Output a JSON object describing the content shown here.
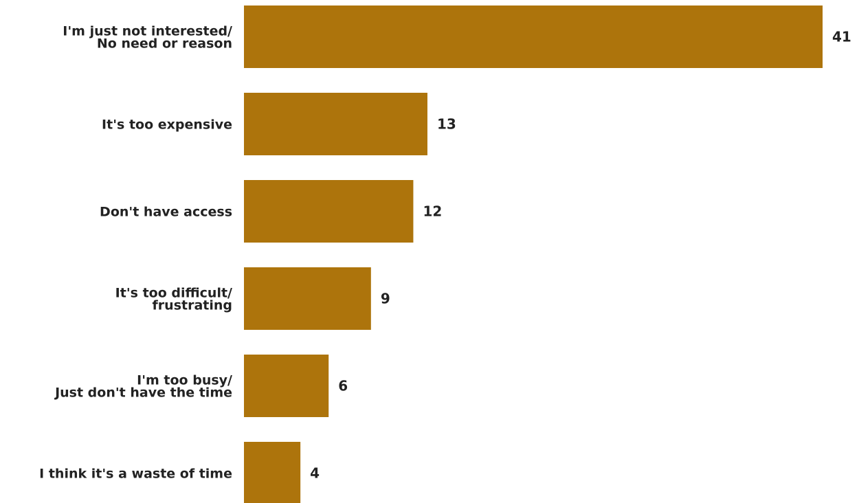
{
  "chart_data": {
    "type": "bar",
    "orientation": "horizontal",
    "categories": [
      [
        "I'm just not interested/",
        "No need or reason"
      ],
      [
        "It's too expensive"
      ],
      [
        "Don't have access"
      ],
      [
        "It's too difficult/",
        "frustrating"
      ],
      [
        "I'm too busy/",
        "Just don't have the time"
      ],
      [
        "I think it's a waste of time"
      ]
    ],
    "values": [
      41,
      13,
      12,
      9,
      6,
      4
    ],
    "value_labels": [
      "41",
      "13",
      "12",
      "9",
      "6",
      "4"
    ],
    "title": "",
    "xlabel": "",
    "ylabel": "",
    "xlim": [
      0,
      41
    ],
    "grid": false,
    "legend": "none",
    "colors": {
      "bar": "#ad740c",
      "text": "#222222"
    }
  }
}
